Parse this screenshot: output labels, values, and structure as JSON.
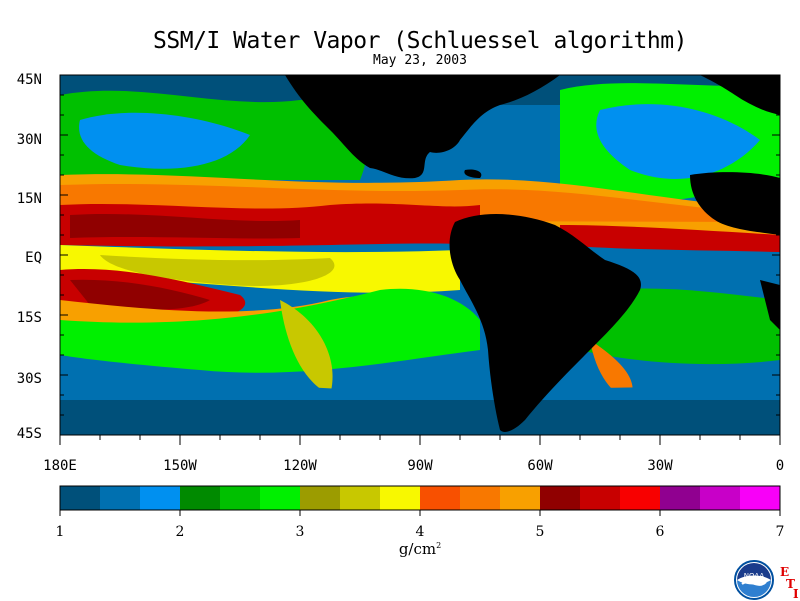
{
  "title": "SSM/I Water Vapor (Schluessel algorithm)",
  "date": "May 23, 2003",
  "lat_labels": [
    "45N",
    "30N",
    "15N",
    "EQ",
    "15S",
    "30S",
    "45S"
  ],
  "lon_labels": [
    "180E",
    "150W",
    "120W",
    "90W",
    "60W",
    "30W",
    "0"
  ],
  "colorbar": {
    "min": 1,
    "max": 7,
    "tick_labels": [
      "1",
      "2",
      "3",
      "4",
      "5",
      "6",
      "7"
    ],
    "units": "g/cm",
    "units_sup": "2",
    "colors": [
      "#00507a",
      "#0070b0",
      "#0090f0",
      "#008a00",
      "#00c000",
      "#00f000",
      "#9c9c00",
      "#c8c800",
      "#f8f800",
      "#f85000",
      "#f87800",
      "#f8a000",
      "#900000",
      "#c80000",
      "#f80000",
      "#900090",
      "#c800c8",
      "#f800f8"
    ]
  },
  "logo": {
    "text": "NOAA",
    "letters": [
      "E",
      "T",
      "I"
    ]
  },
  "chart_data": {
    "type": "heatmap",
    "variable": "water vapor",
    "xlim": [
      -180,
      0
    ],
    "ylim": [
      -45,
      45
    ],
    "scale_range": [
      1,
      7
    ]
  }
}
